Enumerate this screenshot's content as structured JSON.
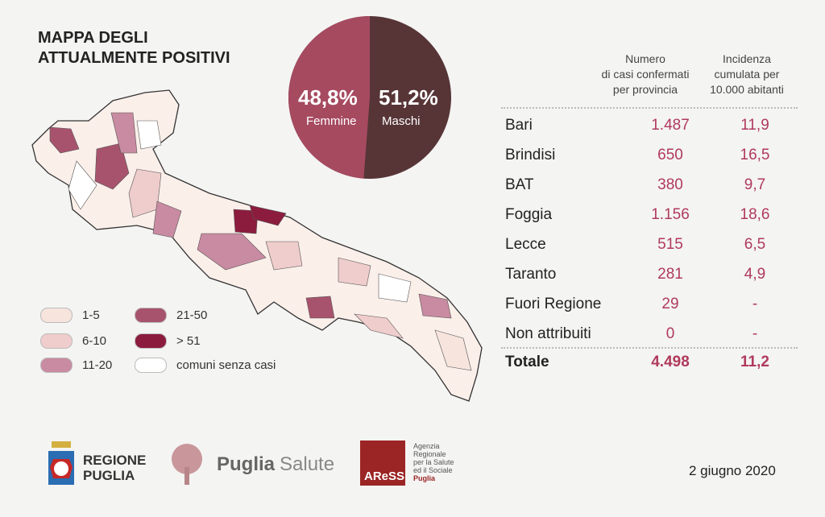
{
  "title": [
    "MAPPA DEGLI",
    "ATTUALMENTE POSITIVI"
  ],
  "pie": {
    "femmine": {
      "value": "48,8%",
      "label": "Femmine",
      "percent": 48.8,
      "color": "#a64a60"
    },
    "maschi": {
      "value": "51,2%",
      "label": "Maschi",
      "percent": 51.2,
      "color": "#573537"
    }
  },
  "legend": [
    {
      "label": "1-5",
      "color": "#f6e4dd"
    },
    {
      "label": "6-10",
      "color": "#efcdcc"
    },
    {
      "label": "11-20",
      "color": "#c98ba1"
    },
    {
      "label": "21-50",
      "color": "#a8536d"
    },
    {
      "label": "> 51",
      "color": "#8c1c3e"
    },
    {
      "label": "comuni senza casi",
      "color": "#ffffff"
    }
  ],
  "table": {
    "headers": [
      "Numero\ndi casi confermati\nper provincia",
      "Incidenza\ncumulata per\n10.000 abitanti"
    ],
    "header_lines": [
      [
        "Numero",
        "di casi confermati",
        "per provincia"
      ],
      [
        "Incidenza",
        "cumulata per",
        "10.000 abitanti"
      ]
    ],
    "rows": [
      {
        "name": "Bari",
        "cases": "1.487",
        "incidence": "11,9"
      },
      {
        "name": "Brindisi",
        "cases": "650",
        "incidence": "16,5"
      },
      {
        "name": "BAT",
        "cases": "380",
        "incidence": "9,7"
      },
      {
        "name": "Foggia",
        "cases": "1.156",
        "incidence": "18,6"
      },
      {
        "name": "Lecce",
        "cases": "515",
        "incidence": "6,5"
      },
      {
        "name": "Taranto",
        "cases": "281",
        "incidence": "4,9"
      },
      {
        "name": "Fuori Regione",
        "cases": "29",
        "incidence": "-"
      },
      {
        "name": "Non attribuiti",
        "cases": "0",
        "incidence": "-"
      }
    ],
    "total": {
      "name": "Totale",
      "cases": "4.498",
      "incidence": "11,2"
    }
  },
  "logos": {
    "regione": [
      "REGIONE",
      "PUGLIA"
    ],
    "puglia_salute": [
      "Puglia",
      "Salute"
    ],
    "aress": {
      "mark": "AReSS",
      "lines": [
        "Agenzia",
        "Regionale",
        "per la Salute",
        "ed il Sociale",
        "Puglia"
      ]
    }
  },
  "date": "2 giugno 2020"
}
